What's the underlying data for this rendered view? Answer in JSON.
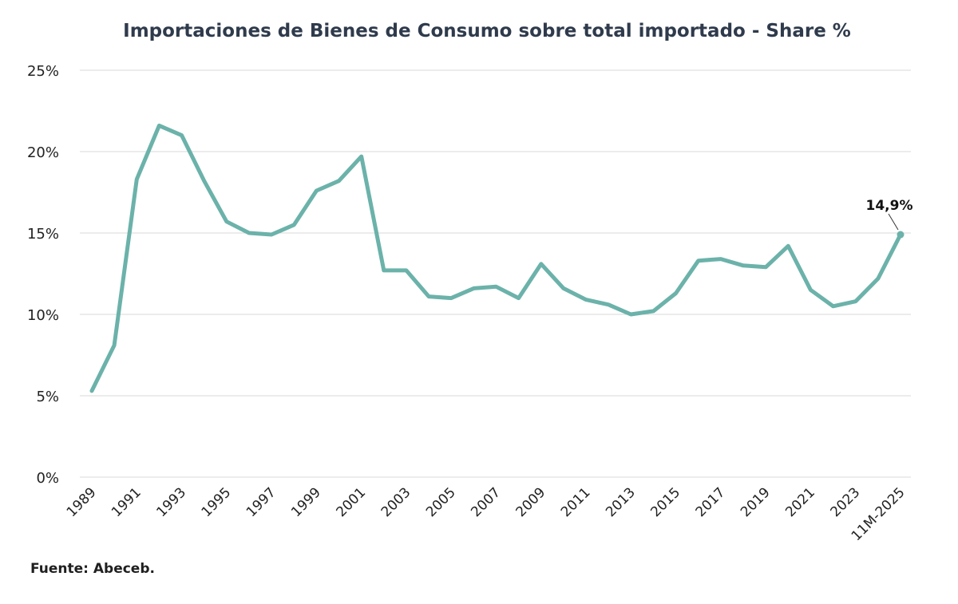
{
  "chart_data": {
    "type": "line",
    "title": "Importaciones de Bienes de Consumo sobre total importado  - Share %",
    "source": "Fuente: Abeceb.",
    "x": [
      "1989",
      "1990",
      "1991",
      "1992",
      "1993",
      "1994",
      "1995",
      "1996",
      "1997",
      "1998",
      "1999",
      "2000",
      "2001",
      "2002",
      "2003",
      "2004",
      "2005",
      "2006",
      "2007",
      "2008",
      "2009",
      "2010",
      "2011",
      "2012",
      "2013",
      "2014",
      "2015",
      "2016",
      "2017",
      "2018",
      "2019",
      "2020",
      "2021",
      "2022",
      "2023",
      "2024",
      "11M-2025"
    ],
    "x_tick_labels": [
      "1989",
      "1991",
      "1993",
      "1995",
      "1997",
      "1999",
      "2001",
      "2003",
      "2005",
      "2007",
      "2009",
      "2011",
      "2013",
      "2015",
      "2017",
      "2019",
      "2021",
      "2023",
      "11M-2025"
    ],
    "series": [
      {
        "values": [
          5.3,
          8.1,
          18.3,
          21.6,
          21.0,
          18.2,
          15.7,
          15.0,
          14.9,
          15.5,
          17.6,
          18.2,
          19.7,
          12.7,
          12.7,
          11.1,
          11.0,
          11.6,
          11.7,
          11.0,
          13.1,
          11.6,
          10.9,
          10.6,
          10.0,
          10.2,
          11.3,
          13.3,
          13.4,
          13.0,
          12.9,
          14.2,
          11.5,
          10.5,
          10.8,
          12.2,
          14.9
        ]
      }
    ],
    "ylim": [
      0,
      25
    ],
    "y_ticks": [
      "0%",
      "5%",
      "10%",
      "15%",
      "20%",
      "25%"
    ],
    "y_tick_values": [
      0,
      5,
      10,
      15,
      20,
      25
    ],
    "grid": true,
    "data_labels": [
      {
        "index": 36,
        "text": "14,9%"
      }
    ],
    "colors": {
      "line": "#6bb2aa",
      "grid": "#d9d9d9"
    }
  }
}
